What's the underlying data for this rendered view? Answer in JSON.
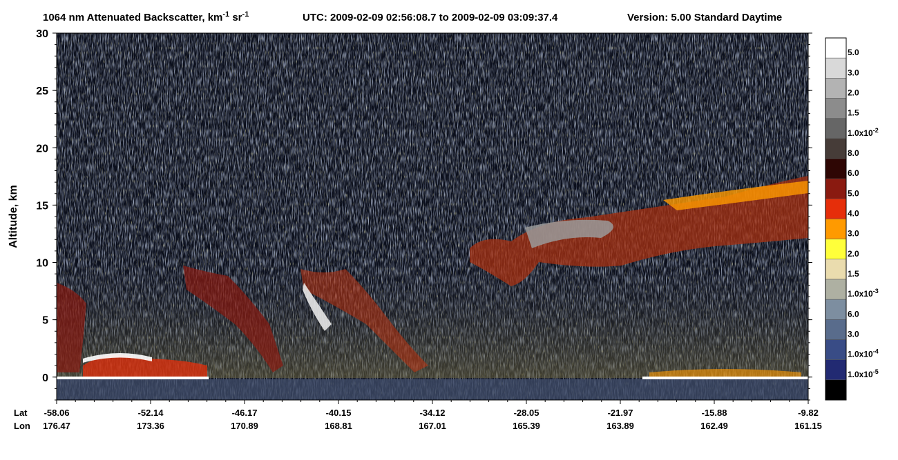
{
  "chart_data": {
    "type": "profile-image",
    "title": {
      "product": "1064 nm Attenuated Backscatter, km",
      "unit_exp1": "-1",
      "unit_sr": " sr",
      "unit_exp2": "-1",
      "utc": "UTC:  2009-02-09 02:56:08.7  to  2009-02-09 03:09:37.4",
      "version": "Version: 5.00  Standard  Daytime"
    },
    "y_label": "Altitude, km",
    "ylim": [
      -2,
      30
    ],
    "yticks": [
      0,
      5,
      10,
      15,
      20,
      25,
      30
    ],
    "x_row_labels": [
      "Lat",
      "Lon"
    ],
    "xticks": [
      {
        "lat": "-58.06",
        "lon": "176.47"
      },
      {
        "lat": "-52.14",
        "lon": "173.36"
      },
      {
        "lat": "-46.17",
        "lon": "170.89"
      },
      {
        "lat": "-40.15",
        "lon": "168.81"
      },
      {
        "lat": "-34.12",
        "lon": "167.01"
      },
      {
        "lat": "-28.05",
        "lon": "165.39"
      },
      {
        "lat": "-21.97",
        "lon": "163.89"
      },
      {
        "lat": "-15.88",
        "lon": "162.49"
      },
      {
        "lat": "-9.82",
        "lon": "161.15"
      }
    ],
    "colorbar": {
      "colors": [
        "#ffffff",
        "#d9d9d9",
        "#b3b3b3",
        "#8c8c8c",
        "#666666",
        "#463c38",
        "#2e0604",
        "#8a1a10",
        "#e62e0a",
        "#ff9a00",
        "#ffff3a",
        "#eadcae",
        "#aeb0a2",
        "#7d8ea0",
        "#596c8c",
        "#394c86",
        "#222a72",
        "#000000"
      ],
      "labels": [
        {
          "text": "5.0"
        },
        {
          "text": "3.0"
        },
        {
          "text": "2.0"
        },
        {
          "text": "1.5"
        },
        {
          "text": "1.0x10",
          "exp": "-2"
        },
        {
          "text": "8.0"
        },
        {
          "text": "6.0"
        },
        {
          "text": "5.0"
        },
        {
          "text": "4.0"
        },
        {
          "text": "3.0"
        },
        {
          "text": "2.0"
        },
        {
          "text": "1.5"
        },
        {
          "text": "1.0x10",
          "exp": "-3"
        },
        {
          "text": "6.0"
        },
        {
          "text": "3.0"
        },
        {
          "text": "1.0x10",
          "exp": "-4"
        },
        {
          "text": "1.0x10",
          "exp": "-5"
        }
      ]
    }
  }
}
